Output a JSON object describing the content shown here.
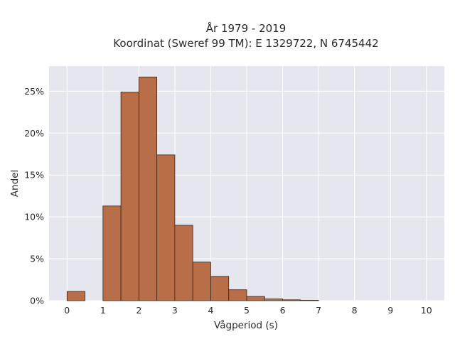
{
  "chart_data": {
    "type": "bar",
    "title": [
      "År 1979 - 2019",
      "Koordinat (Sweref 99 TM): E 1329722, N 6745442"
    ],
    "xlabel": "Vågperiod (s)",
    "ylabel": "Andel",
    "bin_width": 0.5,
    "bins": [
      {
        "x0": 0.0,
        "x1": 0.5,
        "value": 0.011
      },
      {
        "x0": 0.5,
        "x1": 1.0,
        "value": 0.0
      },
      {
        "x0": 1.0,
        "x1": 1.5,
        "value": 0.113
      },
      {
        "x0": 1.5,
        "x1": 2.0,
        "value": 0.249
      },
      {
        "x0": 2.0,
        "x1": 2.5,
        "value": 0.267
      },
      {
        "x0": 2.5,
        "x1": 3.0,
        "value": 0.174
      },
      {
        "x0": 3.0,
        "x1": 3.5,
        "value": 0.09
      },
      {
        "x0": 3.5,
        "x1": 4.0,
        "value": 0.046
      },
      {
        "x0": 4.0,
        "x1": 4.5,
        "value": 0.029
      },
      {
        "x0": 4.5,
        "x1": 5.0,
        "value": 0.013
      },
      {
        "x0": 5.0,
        "x1": 5.5,
        "value": 0.005
      },
      {
        "x0": 5.5,
        "x1": 6.0,
        "value": 0.002
      },
      {
        "x0": 6.0,
        "x1": 6.5,
        "value": 0.001
      },
      {
        "x0": 6.5,
        "x1": 7.0,
        "value": 0.0005
      }
    ],
    "xlim": [
      -0.5,
      10.5
    ],
    "ylim": [
      0,
      0.28
    ],
    "xticks": [
      0,
      1,
      2,
      3,
      4,
      5,
      6,
      7,
      8,
      9,
      10
    ],
    "yticks": [
      0,
      0.05,
      0.1,
      0.15,
      0.2,
      0.25
    ],
    "ytick_labels": [
      "0%",
      "5%",
      "10%",
      "15%",
      "20%",
      "25%"
    ],
    "grid": true,
    "colors": {
      "bar_fill": "#b5673f",
      "bar_stroke": "#3a2418",
      "plot_background": "#e6e6ef",
      "grid": "#ffffff"
    }
  }
}
